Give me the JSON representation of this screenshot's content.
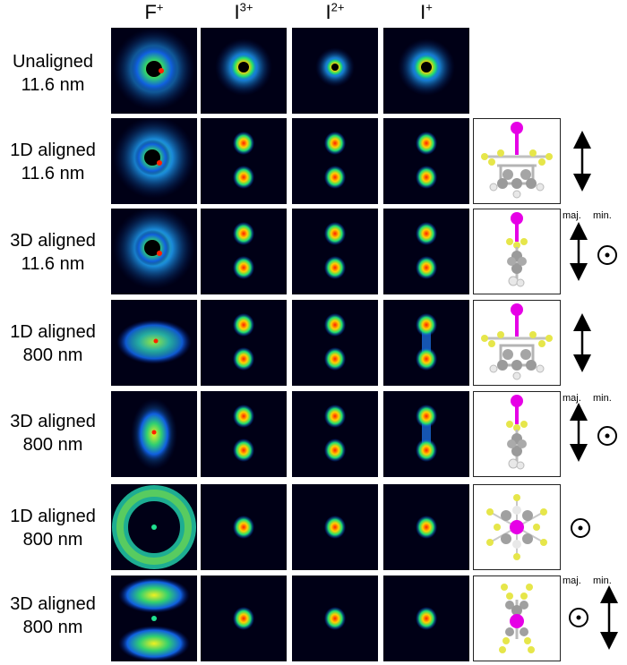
{
  "columns": [
    {
      "base": "F",
      "charge": "+"
    },
    {
      "base": "I",
      "charge": "3+"
    },
    {
      "base": "I",
      "charge": "2+"
    },
    {
      "base": "I",
      "charge": "+"
    }
  ],
  "rows": [
    {
      "line1": "Unaligned",
      "line2": "11.6 nm"
    },
    {
      "line1": "1D aligned",
      "line2": "11.6 nm"
    },
    {
      "line1": "3D aligned",
      "line2": "11.6 nm"
    },
    {
      "line1": "1D aligned",
      "line2": "800 nm"
    },
    {
      "line1": "3D aligned",
      "line2": "800 nm"
    },
    {
      "line1": "1D aligned",
      "line2": "800 nm"
    },
    {
      "line1": "3D aligned",
      "line2": "800 nm"
    }
  ],
  "polarization": {
    "major": "maj.",
    "minor": "min."
  },
  "colors": {
    "background": "#000014",
    "iodine_atom": "#e600e6",
    "fluorine_atom": "#e6e64a",
    "carbon_atom": "#9a9a9a",
    "hydrogen_atom": "#ededed"
  }
}
